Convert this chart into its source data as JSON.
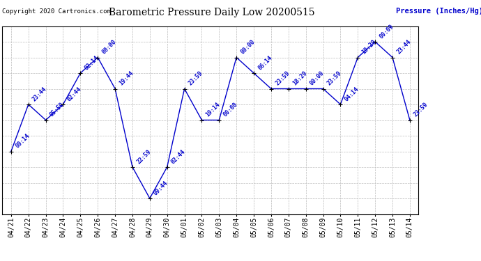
{
  "title": "Barometric Pressure Daily Low 20200515",
  "ylabel": "Pressure (Inches/Hg)",
  "copyright": "Copyright 2020 Cartronics.com",
  "background_color": "#ffffff",
  "line_color": "#0000cc",
  "text_color_blue": "#0000cc",
  "text_color_black": "#000000",
  "ylim": [
    29.26,
    30.076
  ],
  "yticks": [
    29.26,
    29.328,
    29.396,
    29.464,
    29.532,
    29.6,
    29.668,
    29.736,
    29.804,
    29.872,
    29.94,
    30.008,
    30.076
  ],
  "dates": [
    "04/21",
    "04/22",
    "04/23",
    "04/24",
    "04/25",
    "04/26",
    "04/27",
    "04/28",
    "04/29",
    "04/30",
    "05/01",
    "05/02",
    "05/03",
    "05/04",
    "05/05",
    "05/06",
    "05/07",
    "05/08",
    "05/09",
    "05/10",
    "05/11",
    "05/12",
    "05/13",
    "05/14"
  ],
  "values": [
    29.532,
    29.736,
    29.668,
    29.736,
    29.872,
    29.94,
    29.804,
    29.464,
    29.328,
    29.464,
    29.804,
    29.668,
    29.668,
    29.94,
    29.872,
    29.804,
    29.804,
    29.804,
    29.804,
    29.736,
    29.94,
    30.008,
    29.94,
    29.668
  ],
  "time_labels": [
    "00:14",
    "23:44",
    "05:59",
    "02:44",
    "02:14",
    "00:00",
    "19:44",
    "22:59",
    "09:44",
    "02:44",
    "23:59",
    "19:14",
    "00:00",
    "00:00",
    "06:14",
    "23:59",
    "18:29",
    "00:00",
    "23:59",
    "04:14",
    "19:29",
    "00:09",
    "23:44",
    "23:59"
  ]
}
